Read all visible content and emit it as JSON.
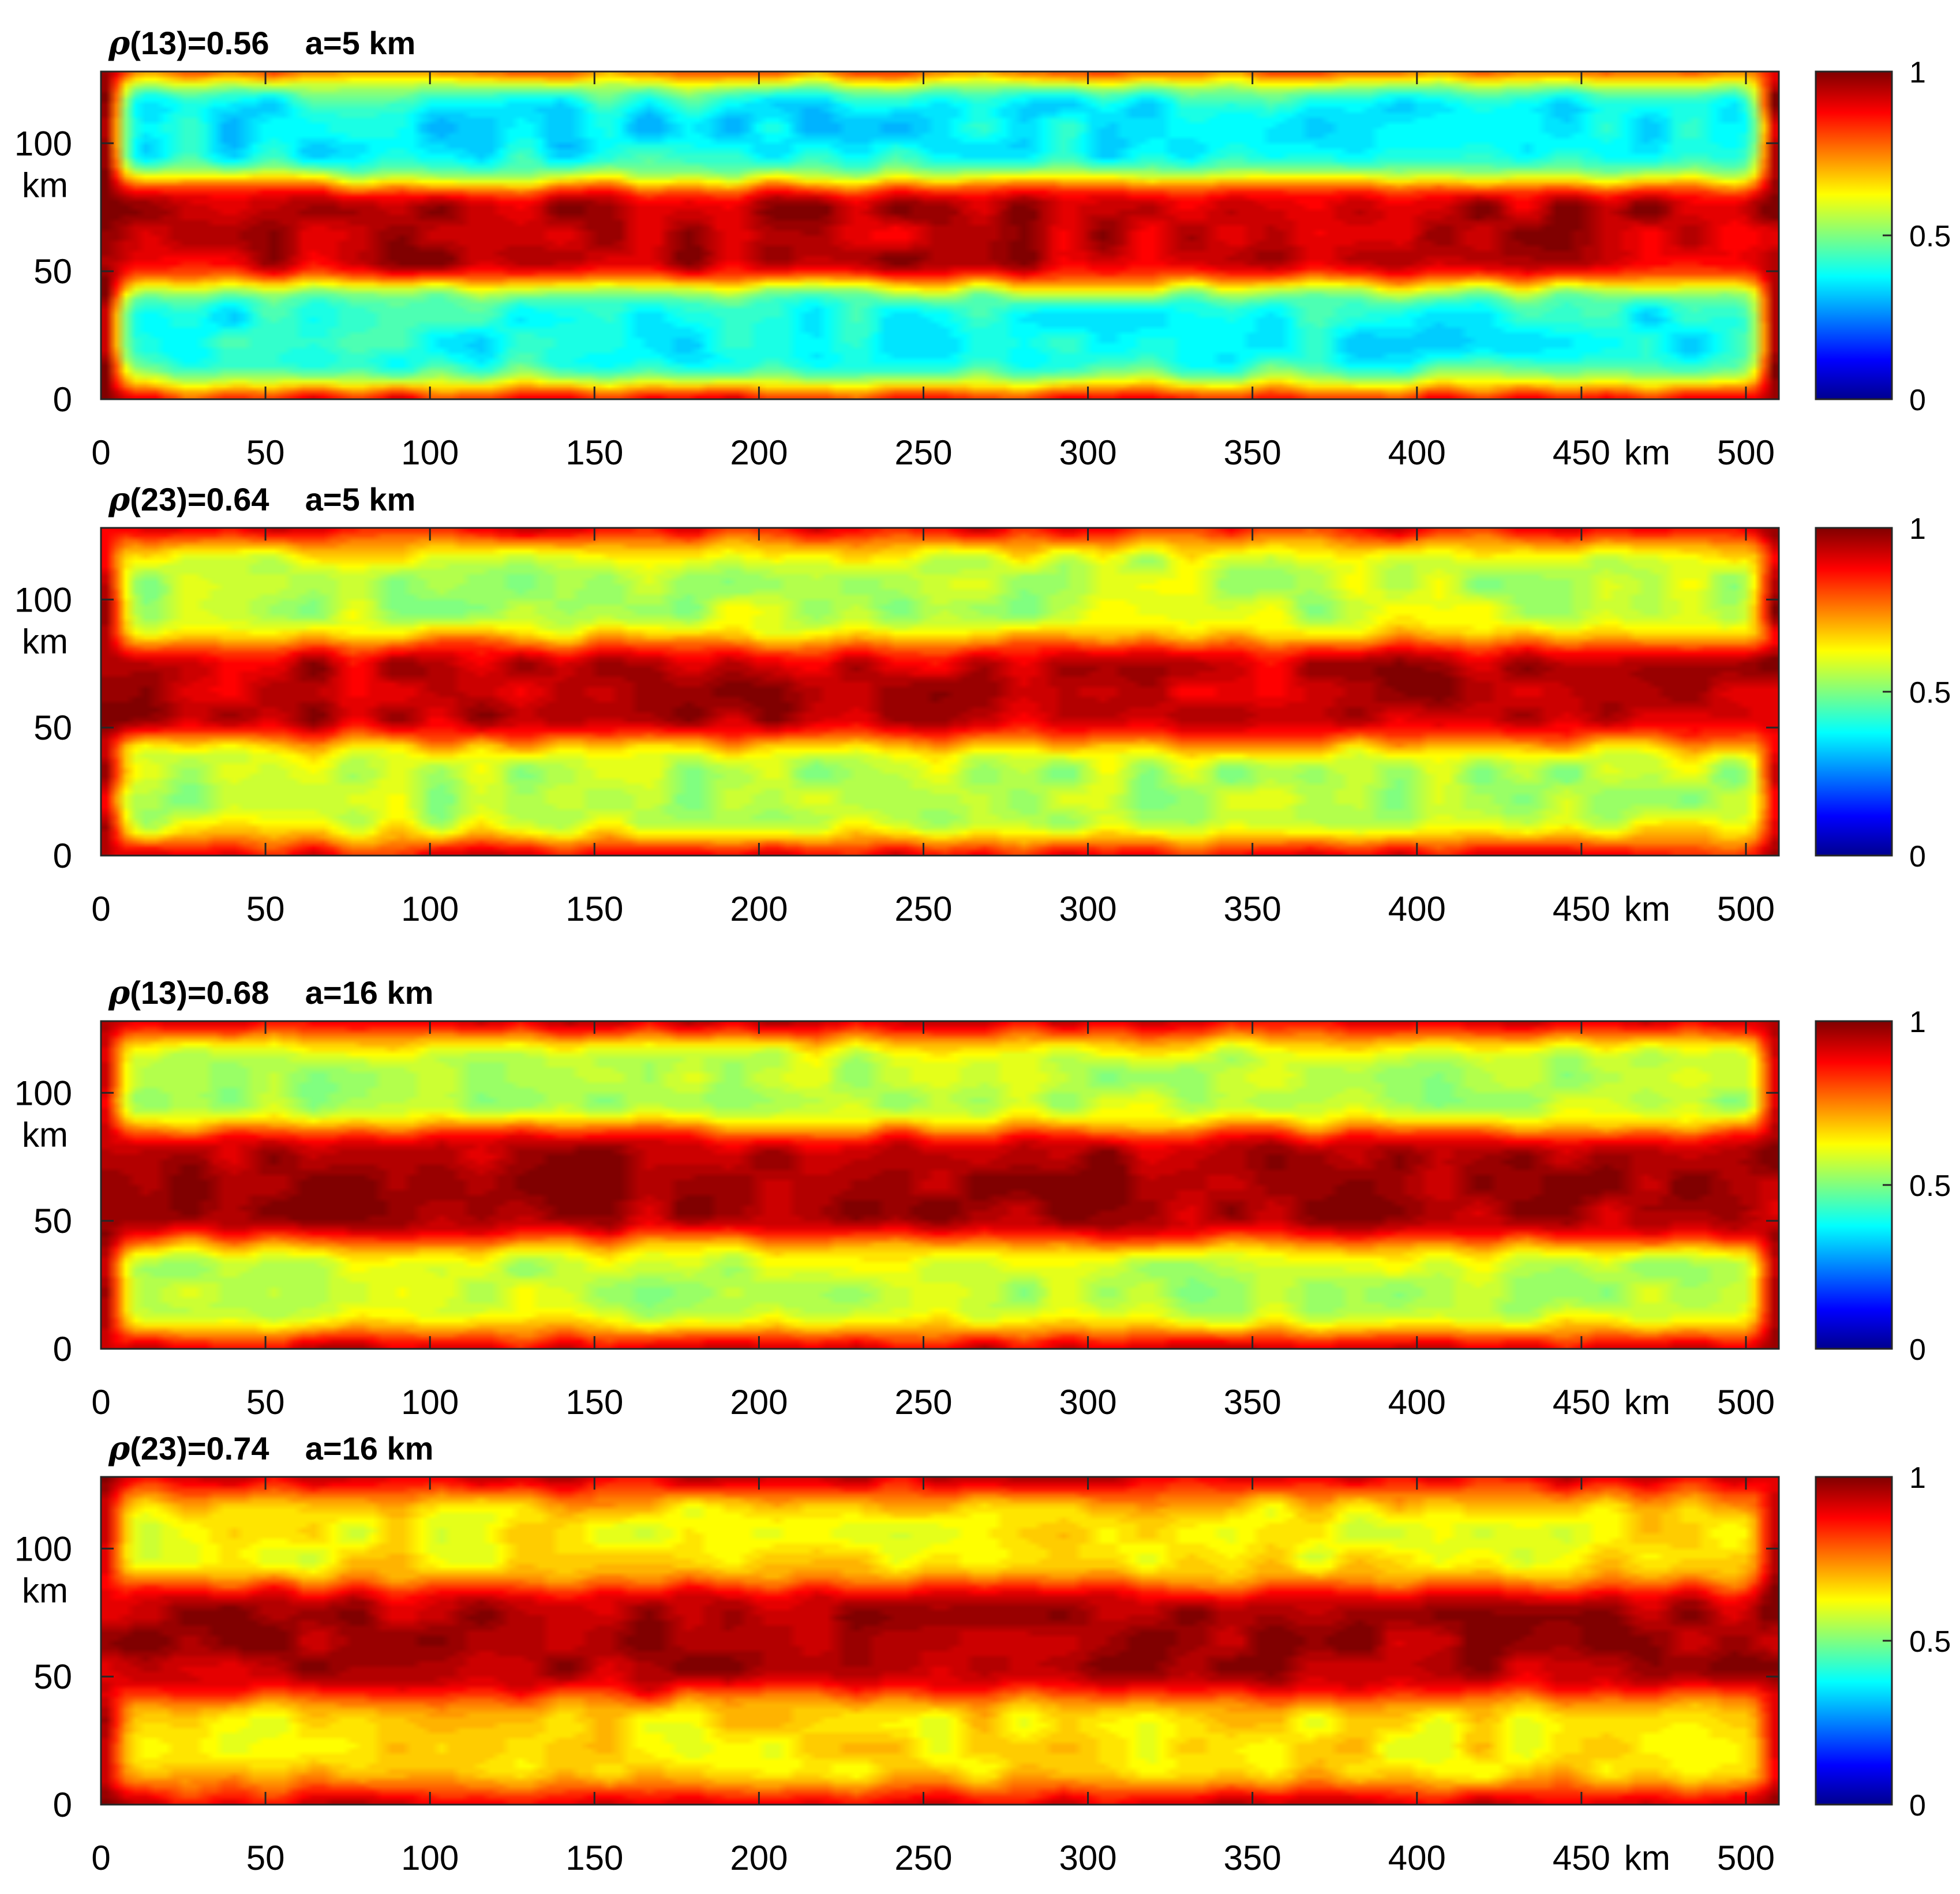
{
  "chart_data": [
    {
      "type": "heatmap",
      "title_symbol": "ρ",
      "title": "(13)=0.56    a=5 km",
      "x_ticks": [
        "0",
        "50",
        "100",
        "150",
        "200",
        "250",
        "300",
        "350",
        "400",
        "450",
        "500"
      ],
      "x_unit_label": "km",
      "y_ticks": [
        "0",
        "50",
        "100"
      ],
      "y_unit_label": "km",
      "xlim": [
        0,
        510
      ],
      "ylim": [
        0,
        128
      ],
      "colorbar": {
        "ticks": [
          "0",
          "0.5",
          "1"
        ],
        "range": [
          0,
          1
        ],
        "colormap": "jet"
      },
      "field": {
        "edge_value": 0.97,
        "mid_center_value": 0.93,
        "lower_band_value": 0.38,
        "upper_band_value": 0.36,
        "band_y_centers": [
          25,
          105
        ],
        "band_half_width": 22,
        "noise_amplitude": 0.07
      }
    },
    {
      "type": "heatmap",
      "title_symbol": "ρ",
      "title": "(23)=0.64    a=5 km",
      "x_ticks": [
        "0",
        "50",
        "100",
        "150",
        "200",
        "250",
        "300",
        "350",
        "400",
        "450",
        "500"
      ],
      "x_unit_label": "km",
      "y_ticks": [
        "0",
        "50",
        "100"
      ],
      "y_unit_label": "km",
      "xlim": [
        0,
        510
      ],
      "ylim": [
        0,
        128
      ],
      "colorbar": {
        "ticks": [
          "0",
          "0.5",
          "1"
        ],
        "range": [
          0,
          1
        ],
        "colormap": "jet"
      },
      "field": {
        "edge_value": 0.95,
        "mid_center_value": 0.94,
        "lower_band_value": 0.55,
        "upper_band_value": 0.56,
        "band_y_centers": [
          25,
          103
        ],
        "band_half_width": 22,
        "noise_amplitude": 0.07
      }
    },
    {
      "type": "heatmap",
      "title_symbol": "ρ",
      "title": "(13)=0.68    a=16 km",
      "x_ticks": [
        "0",
        "50",
        "100",
        "150",
        "200",
        "250",
        "300",
        "350",
        "400",
        "450",
        "500"
      ],
      "x_unit_label": "km",
      "y_ticks": [
        "0",
        "50",
        "100"
      ],
      "y_unit_label": "km",
      "xlim": [
        0,
        510
      ],
      "ylim": [
        0,
        128
      ],
      "colorbar": {
        "ticks": [
          "0",
          "0.5",
          "1"
        ],
        "range": [
          0,
          1
        ],
        "colormap": "jet"
      },
      "field": {
        "edge_value": 0.96,
        "mid_center_value": 0.97,
        "lower_band_value": 0.56,
        "upper_band_value": 0.55,
        "band_y_centers": [
          24,
          104
        ],
        "band_half_width": 20,
        "noise_amplitude": 0.06
      }
    },
    {
      "type": "heatmap",
      "title_symbol": "ρ",
      "title": "(23)=0.74    a=16 km",
      "x_ticks": [
        "0",
        "50",
        "100",
        "150",
        "200",
        "250",
        "300",
        "350",
        "400",
        "450",
        "500"
      ],
      "x_unit_label": "km",
      "y_ticks": [
        "0",
        "50",
        "100"
      ],
      "y_unit_label": "km",
      "xlim": [
        0,
        510
      ],
      "ylim": [
        0,
        128
      ],
      "colorbar": {
        "ticks": [
          "0",
          "0.5",
          "1"
        ],
        "range": [
          0,
          1
        ],
        "colormap": "jet"
      },
      "field": {
        "edge_value": 0.95,
        "mid_center_value": 0.97,
        "lower_band_value": 0.64,
        "upper_band_value": 0.63,
        "band_y_centers": [
          24,
          104
        ],
        "band_half_width": 20,
        "noise_amplitude": 0.06
      }
    }
  ]
}
